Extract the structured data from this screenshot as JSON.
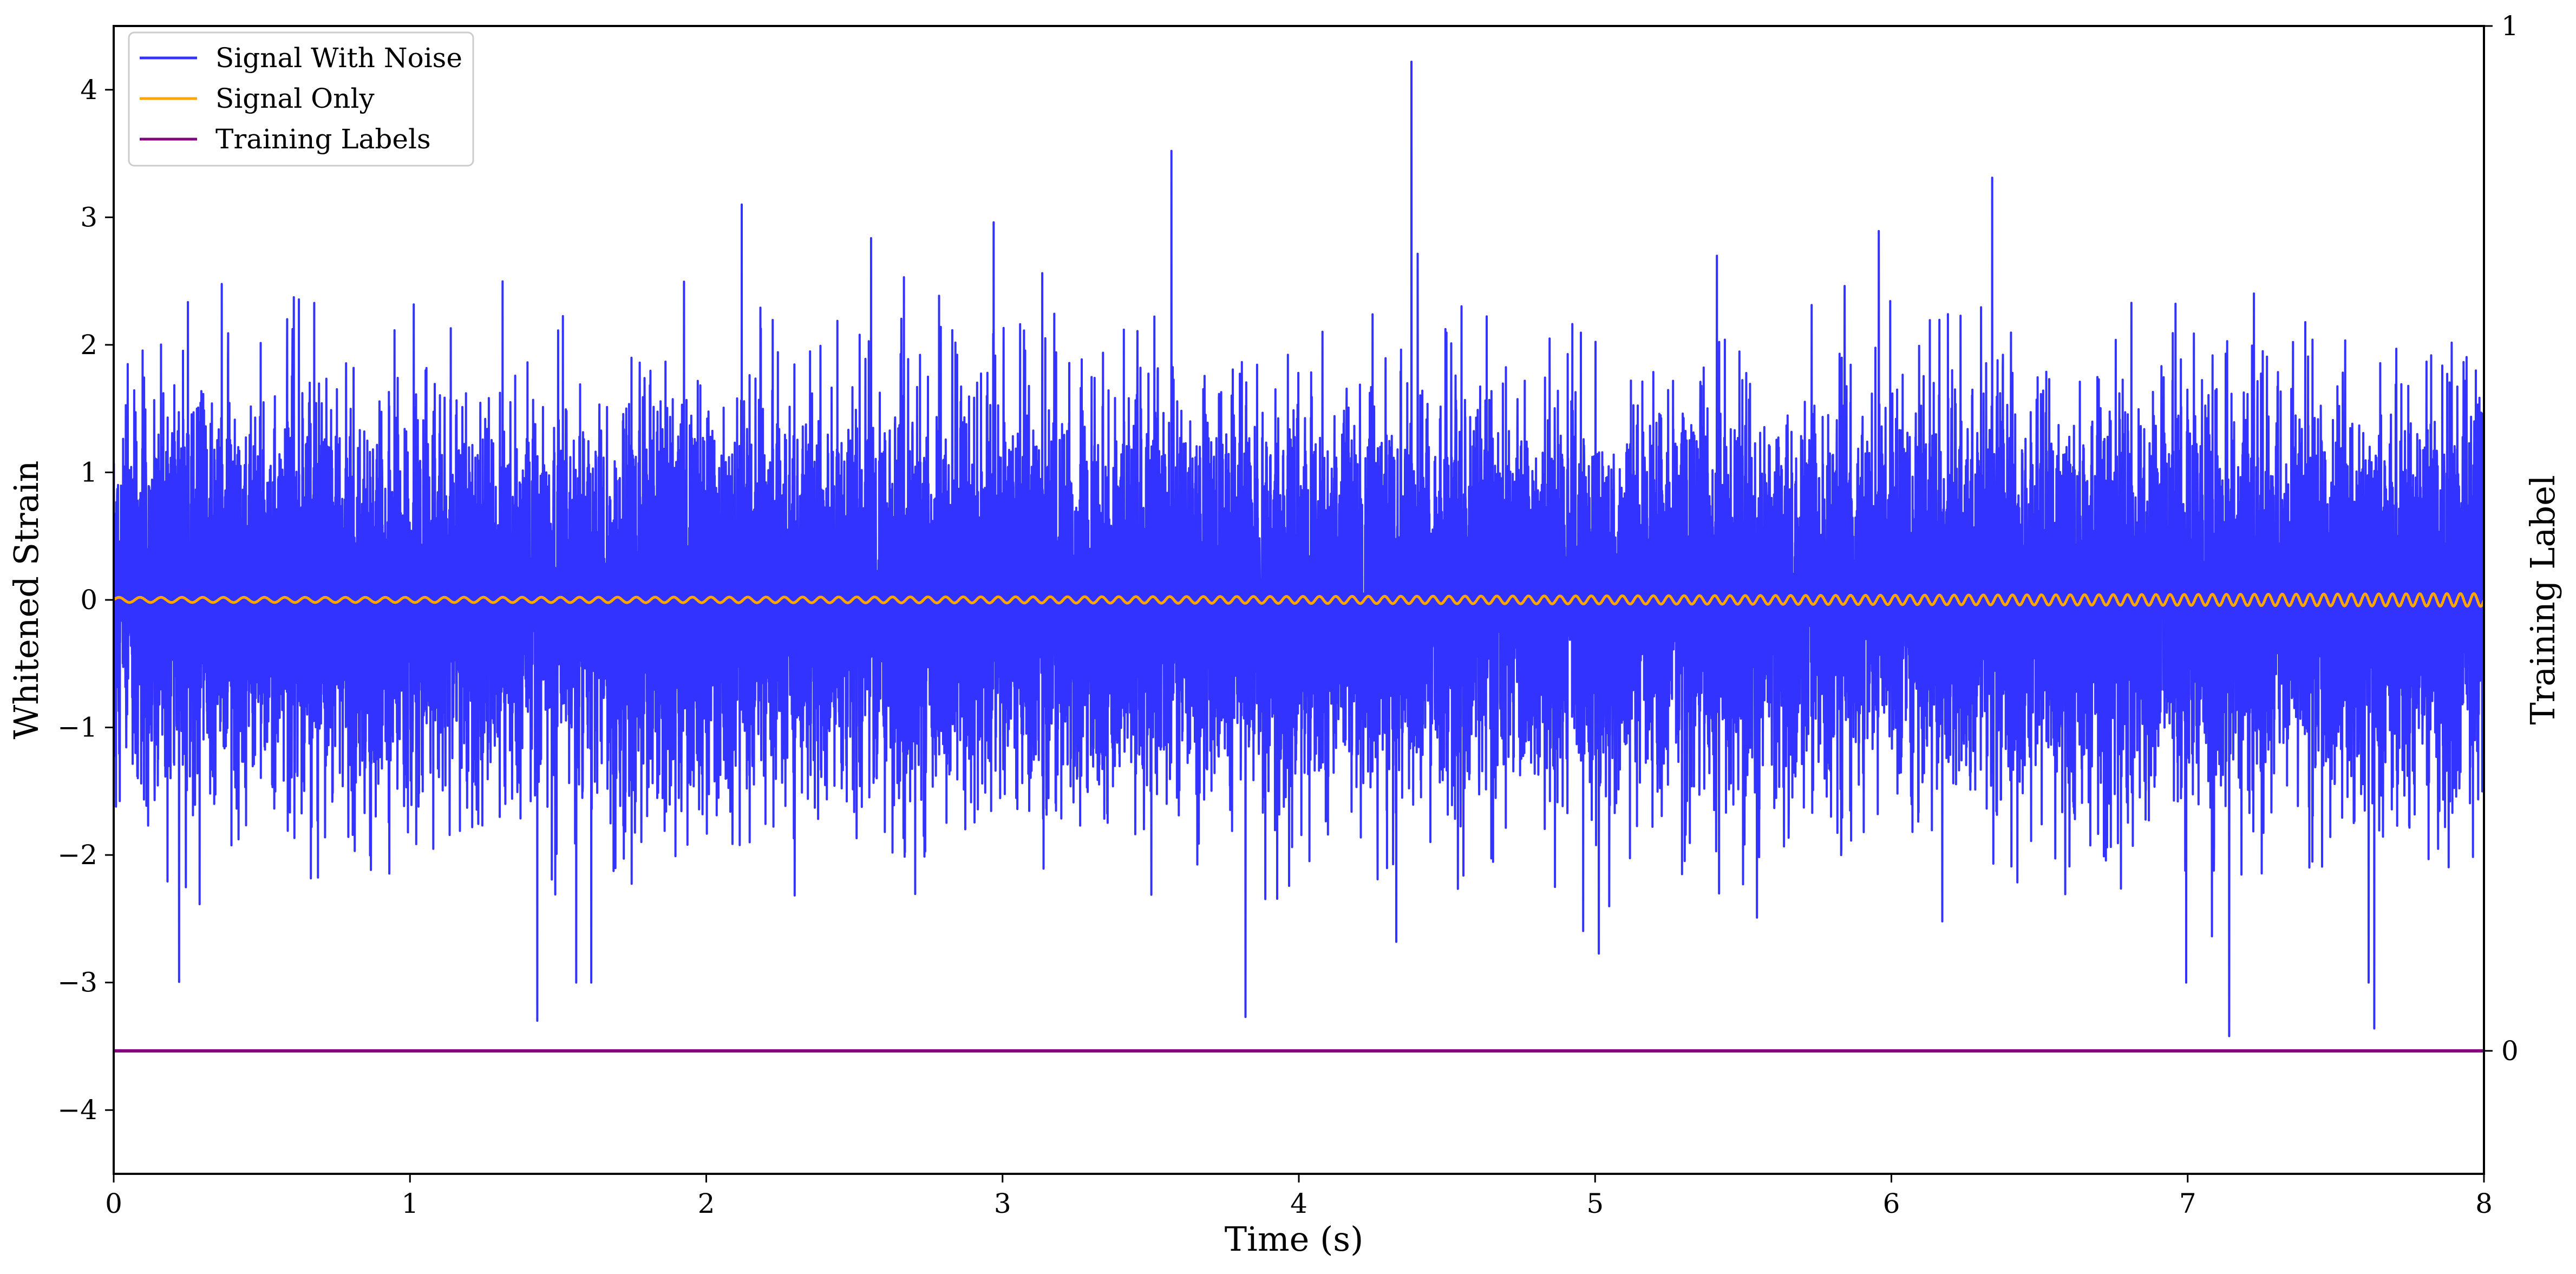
{
  "chart_data": {
    "type": "line",
    "xlabel": "Time (s)",
    "ylabel": "Whitened Strain",
    "y2label": "Training Label",
    "xlim": [
      0,
      8
    ],
    "ylim": [
      -4.5,
      4.5
    ],
    "y2lim": [
      -0.12,
      1
    ],
    "xticks": [
      "0",
      "1",
      "2",
      "3",
      "4",
      "5",
      "6",
      "7",
      "8"
    ],
    "yticks": [
      "4",
      "3",
      "2",
      "1",
      "0",
      "−1",
      "−2",
      "−3",
      "−4"
    ],
    "y2ticks": [
      "1",
      "0"
    ],
    "legend_position": "top-left",
    "grid": false,
    "series": [
      {
        "name": "Signal With Noise",
        "color": "#3333ff",
        "axis": "left",
        "kind": "noise",
        "std": 0.75,
        "mean": 0.0,
        "notable_peaks": [
          {
            "x": 4.38,
            "y": 4.22
          },
          {
            "x": 3.57,
            "y": 3.52
          },
          {
            "x": 6.34,
            "y": 3.31
          },
          {
            "x": 7.14,
            "y": -3.42
          },
          {
            "x": 7.63,
            "y": -3.36
          },
          {
            "x": 1.43,
            "y": -3.3
          },
          {
            "x": 3.82,
            "y": -3.27
          },
          {
            "x": 2.12,
            "y": 3.1
          }
        ]
      },
      {
        "name": "Signal Only",
        "color": "#ffa500",
        "axis": "left",
        "kind": "chirp",
        "amplitude_start": 0.02,
        "amplitude_end": 0.05,
        "cycles_per_second_start": 14,
        "cycles_per_second_end": 22
      },
      {
        "name": "Training Labels",
        "color": "#800080",
        "axis": "right",
        "kind": "constant",
        "value": 0
      }
    ]
  }
}
